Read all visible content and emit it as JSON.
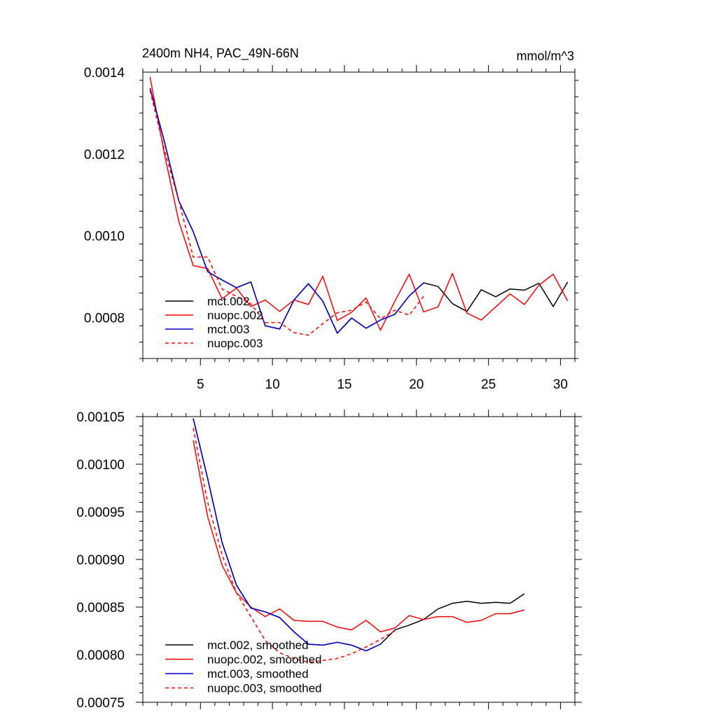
{
  "chart_data": [
    {
      "type": "line",
      "title": "2400m NH4, PAC_49N-66N",
      "units": "mmol/m^3",
      "xlabel": "",
      "ylabel": "",
      "xlim": [
        1,
        31
      ],
      "ylim": [
        0.0007,
        0.0014
      ],
      "xticks": [
        5,
        10,
        15,
        20,
        25,
        30
      ],
      "xtick_labels": [
        "5",
        "10",
        "15",
        "20",
        "25",
        "30"
      ],
      "yticks": [
        0.0008,
        0.001,
        0.0012,
        0.0014
      ],
      "ytick_labels": [
        "0.0008",
        "0.0010",
        "0.0012",
        "0.0014"
      ],
      "legend_position": "bottom-left",
      "grid": false,
      "series": [
        {
          "name": "mct.002",
          "color": "#000000",
          "dash": "solid",
          "x": [
            1.5,
            2.5,
            3.5,
            4.5,
            5.5,
            6.5,
            7.5,
            8.5,
            9.5,
            10.5,
            11.5,
            12.5,
            13.5,
            14.5,
            15.5,
            16.5,
            17.5,
            18.5,
            19.5,
            20.5,
            21.5,
            22.5,
            23.5,
            24.5,
            25.5,
            26.5,
            27.5,
            28.5,
            29.5,
            30.5
          ],
          "y": [
            0.001361,
            0.00123,
            0.001085,
            0.00101,
            0.000912,
            0.000892,
            0.000873,
            0.000887,
            0.00078,
            0.000772,
            0.000843,
            0.000883,
            0.00084,
            0.000762,
            0.000799,
            0.000774,
            0.000794,
            0.000808,
            0.000853,
            0.000885,
            0.000876,
            0.000834,
            0.000815,
            0.000868,
            0.000851,
            0.00087,
            0.000867,
            0.000884,
            0.000827,
            0.000887
          ]
        },
        {
          "name": "nuopc.002",
          "color": "#ff0000",
          "dash": "solid",
          "x": [
            1.5,
            2.5,
            3.5,
            4.5,
            5.5,
            6.5,
            7.5,
            8.5,
            9.5,
            10.5,
            11.5,
            12.5,
            13.5,
            14.5,
            15.5,
            16.5,
            17.5,
            18.5,
            19.5,
            20.5,
            21.5,
            22.5,
            23.5,
            24.5,
            25.5,
            26.5,
            27.5,
            28.5,
            29.5,
            30.5
          ],
          "y": [
            0.001388,
            0.0012,
            0.001035,
            0.000927,
            0.00092,
            0.000846,
            0.000872,
            0.000827,
            0.000843,
            0.000815,
            0.000843,
            0.000832,
            0.000901,
            0.000793,
            0.000813,
            0.000848,
            0.000769,
            0.00084,
            0.000906,
            0.000814,
            0.000826,
            0.000908,
            0.000811,
            0.000794,
            0.000826,
            0.000858,
            0.000832,
            0.000879,
            0.000906,
            0.000841
          ]
        },
        {
          "name": "mct.003",
          "color": "#0000cc",
          "dash": "solid",
          "x": [
            1.5,
            2.5,
            3.5,
            4.5,
            5.5,
            6.5,
            7.5,
            8.5,
            9.5,
            10.5,
            11.5,
            12.5,
            13.5,
            14.5,
            15.5,
            16.5,
            17.5,
            18.5,
            19.5,
            20.5
          ],
          "y": [
            0.001361,
            0.00123,
            0.001085,
            0.00101,
            0.000912,
            0.000892,
            0.000873,
            0.000887,
            0.00078,
            0.000772,
            0.000843,
            0.000883,
            0.00084,
            0.000762,
            0.000799,
            0.000774,
            0.000794,
            0.000808,
            0.000853,
            0.000885
          ]
        },
        {
          "name": "nuopc.003",
          "color": "#ff0000",
          "dash": "dashed",
          "x": [
            1.5,
            2.5,
            3.5,
            4.5,
            5.5,
            6.5,
            7.5,
            8.5,
            9.5,
            10.5,
            11.5,
            12.5,
            13.5,
            14.5,
            15.5,
            16.5,
            17.5,
            18.5,
            19.5,
            20.5
          ],
          "y": [
            0.001355,
            0.00121,
            0.001085,
            0.000948,
            0.000948,
            0.00087,
            0.000852,
            0.000834,
            0.000788,
            0.000788,
            0.000763,
            0.000757,
            0.000785,
            0.000812,
            0.000818,
            0.000838,
            0.000797,
            0.000818,
            0.000806,
            0.000852
          ]
        }
      ]
    },
    {
      "type": "line",
      "title": "",
      "xlabel": "",
      "ylabel": "",
      "xlim": [
        1,
        31
      ],
      "ylim": [
        0.00075,
        0.00105
      ],
      "xticks": [
        5,
        10,
        15,
        20,
        25,
        30
      ],
      "xtick_labels": [],
      "yticks": [
        0.00075,
        0.0008,
        0.00085,
        0.0009,
        0.00095,
        0.001,
        0.00105
      ],
      "ytick_labels": [
        "0.00075",
        "0.00080",
        "0.00085",
        "0.00090",
        "0.00095",
        "0.00100",
        "0.00105"
      ],
      "legend_position": "bottom-left",
      "grid": false,
      "series": [
        {
          "name": "mct.002, smoothed",
          "color": "#000000",
          "dash": "solid",
          "x": [
            4.5,
            5.5,
            6.5,
            7.5,
            8.5,
            9.5,
            10.5,
            11.5,
            12.5,
            13.5,
            14.5,
            15.5,
            16.5,
            17.5,
            18.5,
            19.5,
            20.5,
            21.5,
            22.5,
            23.5,
            24.5,
            25.5,
            26.5,
            27.5
          ],
          "y": [
            0.001048,
            0.000985,
            0.000918,
            0.000873,
            0.000849,
            0.000845,
            0.000839,
            0.000824,
            0.000811,
            0.00081,
            0.000813,
            0.00081,
            0.000804,
            0.000811,
            0.000826,
            0.000831,
            0.000837,
            0.000848,
            0.000854,
            0.000856,
            0.000854,
            0.000855,
            0.000854,
            0.000864
          ]
        },
        {
          "name": "nuopc.002, smoothed",
          "color": "#ff0000",
          "dash": "solid",
          "x": [
            4.5,
            5.5,
            6.5,
            7.5,
            8.5,
            9.5,
            10.5,
            11.5,
            12.5,
            13.5,
            14.5,
            15.5,
            16.5,
            17.5,
            18.5,
            19.5,
            20.5,
            21.5,
            22.5,
            23.5,
            24.5,
            25.5,
            26.5,
            27.5
          ],
          "y": [
            0.001025,
            0.000945,
            0.000894,
            0.000865,
            0.00085,
            0.00084,
            0.000848,
            0.000836,
            0.000835,
            0.000835,
            0.000829,
            0.000826,
            0.000836,
            0.000824,
            0.000828,
            0.000841,
            0.000837,
            0.00084,
            0.00084,
            0.000834,
            0.000836,
            0.000843,
            0.000843,
            0.000847
          ]
        },
        {
          "name": "mct.003, smoothed",
          "color": "#0000cc",
          "dash": "solid",
          "x": [
            4.5,
            5.5,
            6.5,
            7.5,
            8.5,
            9.5,
            10.5,
            11.5,
            12.5,
            13.5,
            14.5,
            15.5,
            16.5,
            17.5
          ],
          "y": [
            0.001048,
            0.000985,
            0.000918,
            0.000873,
            0.000849,
            0.000845,
            0.000839,
            0.000824,
            0.000811,
            0.00081,
            0.000813,
            0.00081,
            0.000804,
            0.000811
          ]
        },
        {
          "name": "nuopc.003, smoothed",
          "color": "#ff0000",
          "dash": "dashed",
          "x": [
            4.5,
            5.5,
            6.5,
            7.5,
            8.5,
            9.5,
            10.5,
            11.5,
            12.5,
            13.5,
            14.5,
            15.5,
            16.5,
            17.5,
            18.5
          ],
          "y": [
            0.001038,
            0.00096,
            0.000905,
            0.000865,
            0.00084,
            0.000815,
            0.000802,
            0.000796,
            0.000792,
            0.000794,
            0.000796,
            0.000801,
            0.000808,
            0.000816,
            0.000825
          ]
        }
      ]
    }
  ]
}
